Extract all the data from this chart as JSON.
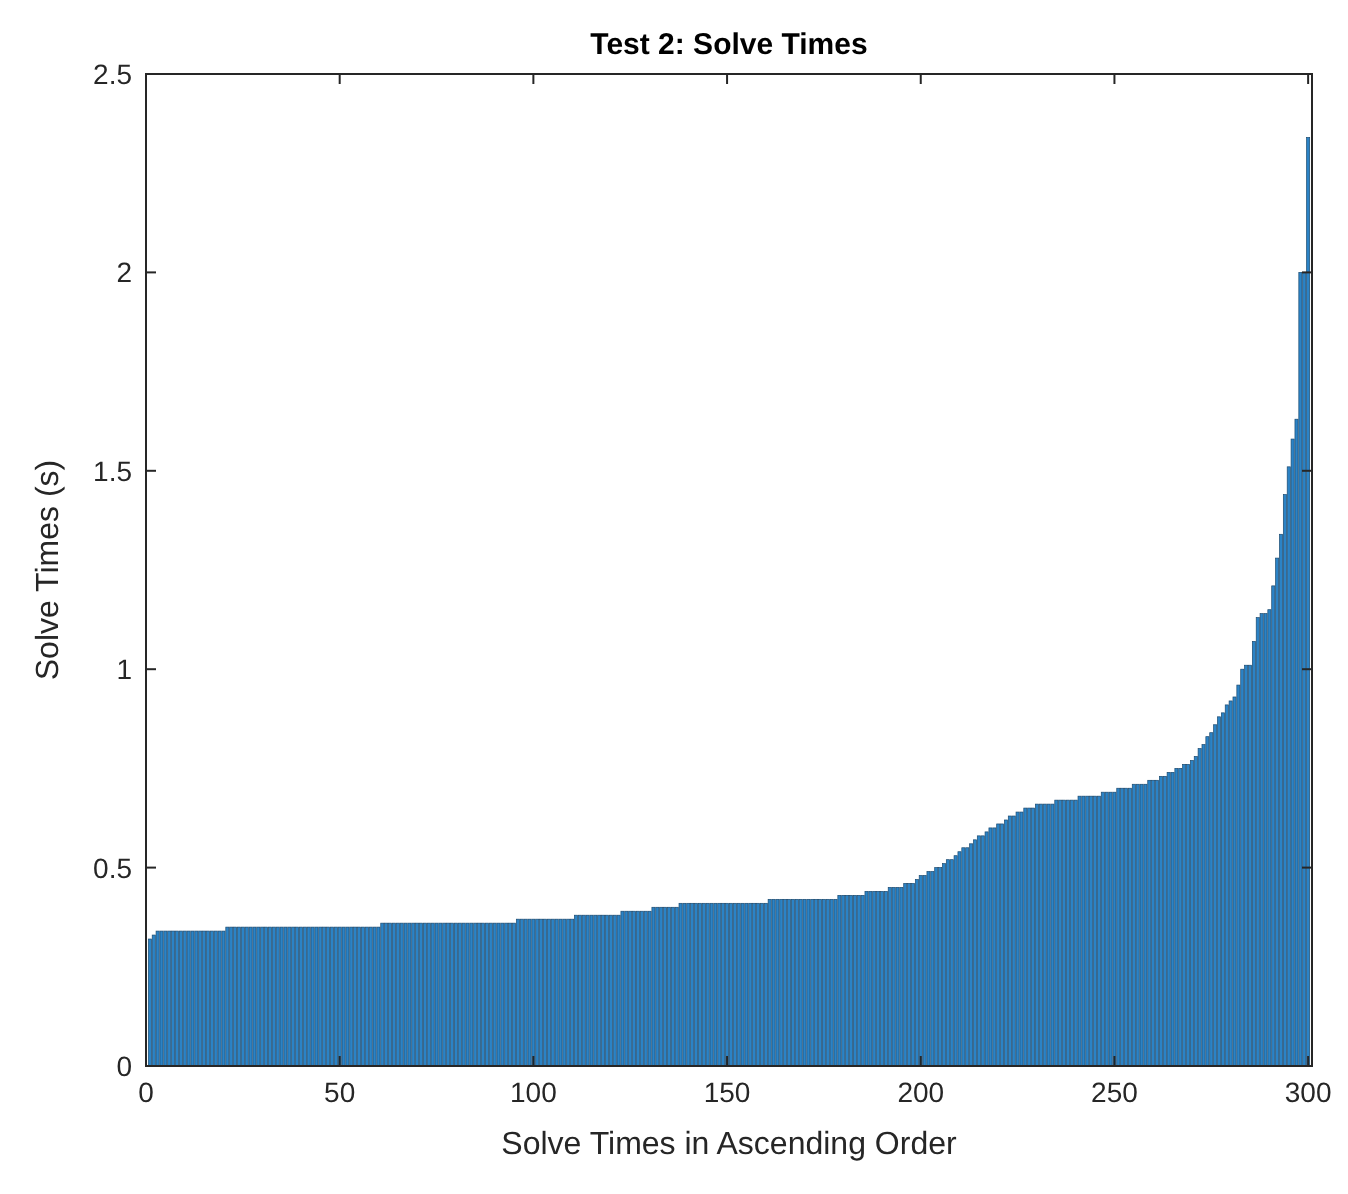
{
  "chart_data": {
    "type": "bar",
    "title": "Test 2: Solve Times",
    "xlabel": "Solve Times in Ascending Order",
    "ylabel": "Solve Times (s)",
    "color": "#2b83c6",
    "x": [
      1,
      2,
      3,
      4,
      5,
      6,
      7,
      8,
      9,
      10,
      11,
      12,
      13,
      14,
      15,
      16,
      17,
      18,
      19,
      20,
      21,
      22,
      23,
      24,
      25,
      26,
      27,
      28,
      29,
      30,
      31,
      32,
      33,
      34,
      35,
      36,
      37,
      38,
      39,
      40,
      41,
      42,
      43,
      44,
      45,
      46,
      47,
      48,
      49,
      50,
      51,
      52,
      53,
      54,
      55,
      56,
      57,
      58,
      59,
      60,
      61,
      62,
      63,
      64,
      65,
      66,
      67,
      68,
      69,
      70,
      71,
      72,
      73,
      74,
      75,
      76,
      77,
      78,
      79,
      80,
      81,
      82,
      83,
      84,
      85,
      86,
      87,
      88,
      89,
      90,
      91,
      92,
      93,
      94,
      95,
      96,
      97,
      98,
      99,
      100,
      101,
      102,
      103,
      104,
      105,
      106,
      107,
      108,
      109,
      110,
      111,
      112,
      113,
      114,
      115,
      116,
      117,
      118,
      119,
      120,
      121,
      122,
      123,
      124,
      125,
      126,
      127,
      128,
      129,
      130,
      131,
      132,
      133,
      134,
      135,
      136,
      137,
      138,
      139,
      140,
      141,
      142,
      143,
      144,
      145,
      146,
      147,
      148,
      149,
      150,
      151,
      152,
      153,
      154,
      155,
      156,
      157,
      158,
      159,
      160,
      161,
      162,
      163,
      164,
      165,
      166,
      167,
      168,
      169,
      170,
      171,
      172,
      173,
      174,
      175,
      176,
      177,
      178,
      179,
      180,
      181,
      182,
      183,
      184,
      185,
      186,
      187,
      188,
      189,
      190,
      191,
      192,
      193,
      194,
      195,
      196,
      197,
      198,
      199,
      200,
      201,
      202,
      203,
      204,
      205,
      206,
      207,
      208,
      209,
      210,
      211,
      212,
      213,
      214,
      215,
      216,
      217,
      218,
      219,
      220,
      221,
      222,
      223,
      224,
      225,
      226,
      227,
      228,
      229,
      230,
      231,
      232,
      233,
      234,
      235,
      236,
      237,
      238,
      239,
      240,
      241,
      242,
      243,
      244,
      245,
      246,
      247,
      248,
      249,
      250,
      251,
      252,
      253,
      254,
      255,
      256,
      257,
      258,
      259,
      260,
      261,
      262,
      263,
      264,
      265,
      266,
      267,
      268,
      269,
      270,
      271,
      272,
      273,
      274,
      275,
      276,
      277,
      278,
      279,
      280,
      281,
      282,
      283,
      284,
      285,
      286,
      287,
      288,
      289,
      290,
      291,
      292,
      293,
      294,
      295,
      296,
      297,
      298,
      299,
      300
    ],
    "values": [
      0.32,
      0.33,
      0.34,
      0.34,
      0.34,
      0.34,
      0.34,
      0.34,
      0.34,
      0.34,
      0.34,
      0.34,
      0.34,
      0.34,
      0.34,
      0.34,
      0.34,
      0.34,
      0.34,
      0.34,
      0.35,
      0.35,
      0.35,
      0.35,
      0.35,
      0.35,
      0.35,
      0.35,
      0.35,
      0.35,
      0.35,
      0.35,
      0.35,
      0.35,
      0.35,
      0.35,
      0.35,
      0.35,
      0.35,
      0.35,
      0.35,
      0.35,
      0.35,
      0.35,
      0.35,
      0.35,
      0.35,
      0.35,
      0.35,
      0.35,
      0.35,
      0.35,
      0.35,
      0.35,
      0.35,
      0.35,
      0.35,
      0.35,
      0.35,
      0.35,
      0.36,
      0.36,
      0.36,
      0.36,
      0.36,
      0.36,
      0.36,
      0.36,
      0.36,
      0.36,
      0.36,
      0.36,
      0.36,
      0.36,
      0.36,
      0.36,
      0.36,
      0.36,
      0.36,
      0.36,
      0.36,
      0.36,
      0.36,
      0.36,
      0.36,
      0.36,
      0.36,
      0.36,
      0.36,
      0.36,
      0.36,
      0.36,
      0.36,
      0.36,
      0.36,
      0.37,
      0.37,
      0.37,
      0.37,
      0.37,
      0.37,
      0.37,
      0.37,
      0.37,
      0.37,
      0.37,
      0.37,
      0.37,
      0.37,
      0.37,
      0.38,
      0.38,
      0.38,
      0.38,
      0.38,
      0.38,
      0.38,
      0.38,
      0.38,
      0.38,
      0.38,
      0.38,
      0.39,
      0.39,
      0.39,
      0.39,
      0.39,
      0.39,
      0.39,
      0.39,
      0.4,
      0.4,
      0.4,
      0.4,
      0.4,
      0.4,
      0.4,
      0.41,
      0.41,
      0.41,
      0.41,
      0.41,
      0.41,
      0.41,
      0.41,
      0.41,
      0.41,
      0.41,
      0.41,
      0.41,
      0.41,
      0.41,
      0.41,
      0.41,
      0.41,
      0.41,
      0.41,
      0.41,
      0.41,
      0.41,
      0.42,
      0.42,
      0.42,
      0.42,
      0.42,
      0.42,
      0.42,
      0.42,
      0.42,
      0.42,
      0.42,
      0.42,
      0.42,
      0.42,
      0.42,
      0.42,
      0.42,
      0.42,
      0.43,
      0.43,
      0.43,
      0.43,
      0.43,
      0.43,
      0.43,
      0.44,
      0.44,
      0.44,
      0.44,
      0.44,
      0.44,
      0.45,
      0.45,
      0.45,
      0.45,
      0.46,
      0.46,
      0.46,
      0.47,
      0.48,
      0.48,
      0.49,
      0.49,
      0.5,
      0.5,
      0.51,
      0.52,
      0.52,
      0.53,
      0.54,
      0.55,
      0.55,
      0.56,
      0.57,
      0.58,
      0.58,
      0.59,
      0.6,
      0.6,
      0.61,
      0.61,
      0.62,
      0.63,
      0.63,
      0.64,
      0.64,
      0.65,
      0.65,
      0.65,
      0.66,
      0.66,
      0.66,
      0.66,
      0.66,
      0.67,
      0.67,
      0.67,
      0.67,
      0.67,
      0.67,
      0.68,
      0.68,
      0.68,
      0.68,
      0.68,
      0.68,
      0.69,
      0.69,
      0.69,
      0.69,
      0.7,
      0.7,
      0.7,
      0.7,
      0.71,
      0.71,
      0.71,
      0.71,
      0.72,
      0.72,
      0.72,
      0.73,
      0.73,
      0.74,
      0.74,
      0.75,
      0.75,
      0.76,
      0.76,
      0.77,
      0.78,
      0.8,
      0.81,
      0.83,
      0.84,
      0.86,
      0.88,
      0.89,
      0.91,
      0.92,
      0.93,
      0.96,
      1.0,
      1.01,
      1.01,
      1.07,
      1.13,
      1.14,
      1.14,
      1.15,
      1.21,
      1.28,
      1.34,
      1.44,
      1.51,
      1.58,
      1.63,
      2.0,
      2.0,
      2.34
    ],
    "xlim": [
      0,
      301
    ],
    "ylim": [
      0,
      2.5
    ],
    "xticks": [
      0,
      50,
      100,
      150,
      200,
      250,
      300
    ],
    "yticks": [
      0,
      0.5,
      1,
      1.5,
      2,
      2.5
    ],
    "grid": false
  }
}
